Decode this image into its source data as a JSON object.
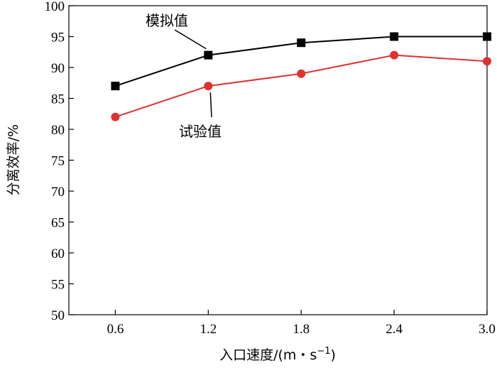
{
  "chart_data": {
    "type": "line",
    "title": "",
    "xlabel": "入口速度/(m・s",
    "xlabel_sup": "−1",
    "xlabel_close": ")",
    "ylabel": "分离效率/%",
    "x": [
      0.6,
      1.2,
      1.8,
      2.4,
      3.0
    ],
    "x_tick_labels": [
      "0.6",
      "1.2",
      "1.8",
      "2.4",
      "3.0"
    ],
    "xlim": [
      0.3,
      3.0
    ],
    "ylim": [
      50,
      100
    ],
    "y_ticks": [
      50,
      55,
      60,
      65,
      70,
      75,
      80,
      85,
      90,
      95,
      100
    ],
    "grid": false,
    "series": [
      {
        "name": "模拟值",
        "color": "#000000",
        "marker": "square",
        "values": [
          87,
          92,
          94,
          95,
          95
        ]
      },
      {
        "name": "试验值",
        "color": "#e03030",
        "marker": "circle",
        "values": [
          82,
          87,
          89,
          92,
          91
        ]
      }
    ],
    "annotations": [
      {
        "text": "模拟值",
        "series": 0,
        "point_index": 1
      },
      {
        "text": "试验值",
        "series": 1,
        "point_index": 1
      }
    ]
  }
}
